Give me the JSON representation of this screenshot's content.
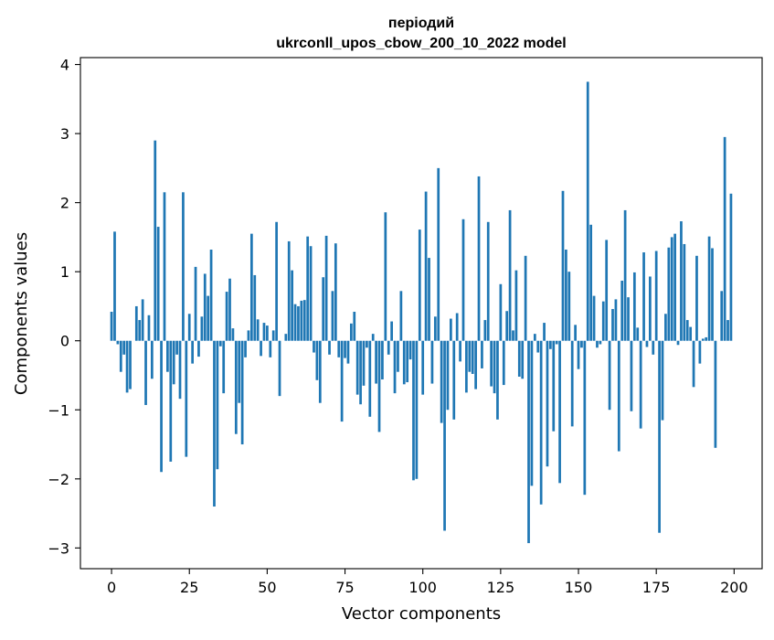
{
  "chart_data": {
    "type": "bar",
    "title": "періодий",
    "subtitle": "ukrconll_upos_cbow_200_10_2022 model",
    "xlabel": "Vector components",
    "ylabel": "Components values",
    "xlim": [
      -10,
      209
    ],
    "ylim": [
      -3.3,
      4.1
    ],
    "xticks": [
      0,
      25,
      50,
      75,
      100,
      125,
      150,
      175,
      200
    ],
    "xtick_labels": [
      "0",
      "25",
      "50",
      "75",
      "100",
      "125",
      "150",
      "175",
      "200"
    ],
    "yticks": [
      -3,
      -2,
      -1,
      0,
      1,
      2,
      3,
      4
    ],
    "ytick_labels": [
      "−3",
      "−2",
      "−1",
      "0",
      "1",
      "2",
      "3",
      "4"
    ],
    "grid": false,
    "bar_color": "#1f77b4",
    "x": [
      0,
      1,
      2,
      3,
      4,
      5,
      6,
      7,
      8,
      9,
      10,
      11,
      12,
      13,
      14,
      15,
      16,
      17,
      18,
      19,
      20,
      21,
      22,
      23,
      24,
      25,
      26,
      27,
      28,
      29,
      30,
      31,
      32,
      33,
      34,
      35,
      36,
      37,
      38,
      39,
      40,
      41,
      42,
      43,
      44,
      45,
      46,
      47,
      48,
      49,
      50,
      51,
      52,
      53,
      54,
      55,
      56,
      57,
      58,
      59,
      60,
      61,
      62,
      63,
      64,
      65,
      66,
      67,
      68,
      69,
      70,
      71,
      72,
      73,
      74,
      75,
      76,
      77,
      78,
      79,
      80,
      81,
      82,
      83,
      84,
      85,
      86,
      87,
      88,
      89,
      90,
      91,
      92,
      93,
      94,
      95,
      96,
      97,
      98,
      99,
      100,
      101,
      102,
      103,
      104,
      105,
      106,
      107,
      108,
      109,
      110,
      111,
      112,
      113,
      114,
      115,
      116,
      117,
      118,
      119,
      120,
      121,
      122,
      123,
      124,
      125,
      126,
      127,
      128,
      129,
      130,
      131,
      132,
      133,
      134,
      135,
      136,
      137,
      138,
      139,
      140,
      141,
      142,
      143,
      144,
      145,
      146,
      147,
      148,
      149,
      150,
      151,
      152,
      153,
      154,
      155,
      156,
      157,
      158,
      159,
      160,
      161,
      162,
      163,
      164,
      165,
      166,
      167,
      168,
      169,
      170,
      171,
      172,
      173,
      174,
      175,
      176,
      177,
      178,
      179,
      180,
      181,
      182,
      183,
      184,
      185,
      186,
      187,
      188,
      189,
      190,
      191,
      192,
      193,
      194,
      195,
      196,
      197,
      198,
      199
    ],
    "values": [
      0.42,
      1.58,
      -0.05,
      -0.45,
      -0.2,
      -0.75,
      -0.7,
      0.0,
      0.5,
      0.3,
      0.6,
      -0.93,
      0.37,
      -0.55,
      2.9,
      1.65,
      -1.9,
      2.15,
      -0.45,
      -1.75,
      -0.63,
      -0.2,
      -0.84,
      2.15,
      -1.68,
      0.39,
      -0.33,
      1.07,
      -0.23,
      0.35,
      0.97,
      0.65,
      1.32,
      -2.4,
      -1.86,
      -0.08,
      -0.76,
      0.71,
      0.9,
      0.18,
      -1.35,
      -0.9,
      -1.5,
      -0.24,
      0.15,
      1.55,
      0.95,
      0.31,
      -0.22,
      0.26,
      0.22,
      -0.24,
      0.15,
      1.72,
      -0.8,
      0.0,
      0.1,
      1.44,
      1.02,
      0.53,
      0.5,
      0.58,
      0.59,
      1.51,
      1.37,
      -0.17,
      -0.57,
      -0.9,
      0.92,
      1.52,
      -0.2,
      0.72,
      1.41,
      -0.24,
      -1.17,
      -0.25,
      -0.33,
      0.25,
      0.42,
      -0.78,
      -0.92,
      -0.65,
      -0.1,
      -1.1,
      0.1,
      -0.62,
      -1.32,
      -0.56,
      1.86,
      -0.2,
      0.28,
      -0.76,
      -0.45,
      0.72,
      -0.63,
      -0.6,
      -0.27,
      -2.02,
      -2.0,
      1.61,
      -0.78,
      2.16,
      1.2,
      -0.62,
      0.35,
      2.5,
      -1.19,
      -2.75,
      -1.0,
      0.32,
      -1.14,
      0.4,
      -0.3,
      1.76,
      -0.75,
      -0.45,
      -0.48,
      -0.7,
      2.38,
      -0.4,
      0.3,
      1.72,
      -0.66,
      -0.76,
      -1.14,
      0.82,
      -0.64,
      0.43,
      1.89,
      0.15,
      1.02,
      -0.52,
      -0.55,
      1.23,
      -2.93,
      -2.1,
      0.1,
      -0.17,
      -2.37,
      0.26,
      -1.82,
      -0.12,
      -1.31,
      -0.05,
      -2.06,
      2.17,
      1.32,
      1.0,
      -1.24,
      0.23,
      -0.41,
      -0.1,
      -2.23,
      3.75,
      1.68,
      0.65,
      -0.1,
      -0.05,
      0.57,
      1.46,
      -1.0,
      0.46,
      0.6,
      -1.6,
      0.87,
      1.89,
      0.63,
      -1.02,
      0.99,
      0.19,
      -1.27,
      1.28,
      -0.09,
      0.93,
      -0.2,
      1.3,
      -2.78,
      -1.15,
      0.39,
      1.35,
      1.5,
      1.55,
      -0.06,
      1.73,
      1.4,
      0.3,
      0.2,
      -0.67,
      1.23,
      -0.33,
      0.03,
      0.05,
      1.51,
      1.34,
      -1.55,
      0.0,
      0.72,
      2.95,
      0.3,
      2.13
    ]
  }
}
